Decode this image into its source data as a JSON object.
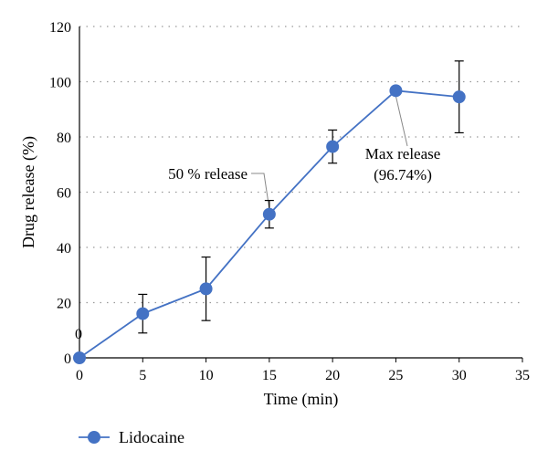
{
  "chart_data": {
    "type": "line",
    "xlabel": "Time (min)",
    "ylabel": "Drug release (%)",
    "xlim": [
      0,
      35
    ],
    "ylim": [
      0,
      120
    ],
    "x_ticks": [
      "0",
      "5",
      "10",
      "15",
      "20",
      "25",
      "30",
      "35"
    ],
    "y_ticks": [
      "0",
      "20",
      "40",
      "60",
      "80",
      "100",
      "120"
    ],
    "grid": "horizontal dotted",
    "legend_position": "bottom-left",
    "series": [
      {
        "name": "Lidocaine",
        "color": "#4472C4",
        "marker": "circle",
        "x": [
          0,
          5,
          10,
          15,
          20,
          25,
          30
        ],
        "y": [
          0,
          16,
          25,
          52,
          76.5,
          96.74,
          94.5
        ],
        "error": [
          0,
          7,
          11.5,
          5,
          6,
          0,
          13
        ]
      }
    ],
    "point_labels": [
      {
        "x": 0,
        "y": 0,
        "text": "0"
      }
    ],
    "annotations": [
      {
        "lines": [
          "50 % release"
        ],
        "x": 15,
        "y": 52
      },
      {
        "lines": [
          "Max release",
          "(96.74%)"
        ],
        "x": 25,
        "y": 96.74
      }
    ]
  }
}
